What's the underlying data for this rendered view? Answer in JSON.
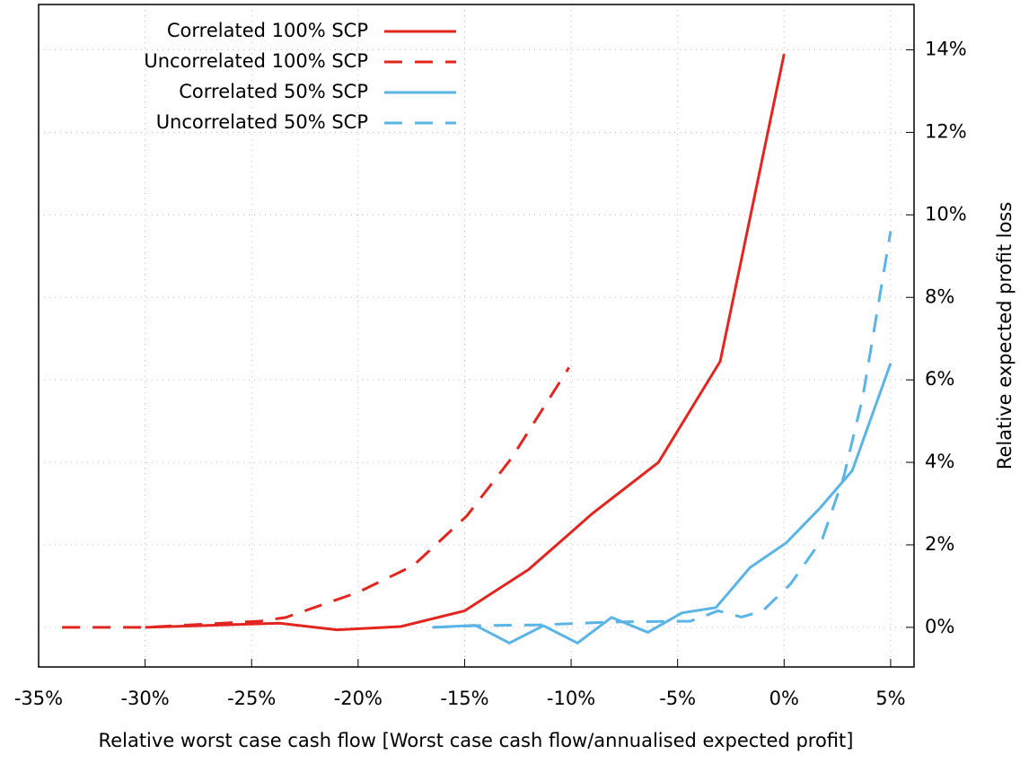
{
  "chart_data": {
    "type": "line",
    "xlabel": "Relative worst case cash flow [Worst case cash flow/annualised expected profit]",
    "ylabel": "Relative expected profit loss",
    "xlim": [
      -35,
      6.1
    ],
    "ylim": [
      -0.96,
      15.1
    ],
    "xticks": [
      {
        "value": -35,
        "label": "-35%"
      },
      {
        "value": -30,
        "label": "-30%"
      },
      {
        "value": -25,
        "label": "-25%"
      },
      {
        "value": -20,
        "label": "-20%"
      },
      {
        "value": -15,
        "label": "-15%"
      },
      {
        "value": -10,
        "label": "-10%"
      },
      {
        "value": -5,
        "label": "-5%"
      },
      {
        "value": 0,
        "label": "0%"
      },
      {
        "value": 5,
        "label": "5%"
      }
    ],
    "yticks": [
      {
        "value": 0,
        "label": "0%"
      },
      {
        "value": 2,
        "label": "2%"
      },
      {
        "value": 4,
        "label": "4%"
      },
      {
        "value": 6,
        "label": "6%"
      },
      {
        "value": 8,
        "label": "8%"
      },
      {
        "value": 10,
        "label": "10%"
      },
      {
        "value": 12,
        "label": "12%"
      },
      {
        "value": 14,
        "label": "14%"
      }
    ],
    "y_axis_side": "right",
    "grid": true,
    "legend": "upper left",
    "series": [
      {
        "name": "Correlated 100% SCP",
        "color": "#e3251f",
        "linestyle": "solid",
        "x": [
          -30,
          -23.7,
          -21,
          -18,
          -15,
          -12,
          -9,
          -5.9,
          -3,
          0
        ],
        "values": [
          0,
          0.1,
          -0.06,
          0.02,
          0.4,
          1.4,
          2.76,
          4.0,
          6.45,
          13.9
        ]
      },
      {
        "name": "Uncorrelated 100% SCP",
        "color": "#e3251f",
        "linestyle": "dashed",
        "x": [
          -33.9,
          -30,
          -24.6,
          -23.4,
          -20,
          -17.4,
          -14.9,
          -12.8,
          -10.1
        ],
        "values": [
          0,
          0,
          0.15,
          0.24,
          0.85,
          1.5,
          2.7,
          4.1,
          6.3
        ]
      },
      {
        "name": "Correlated 50% SCP",
        "color": "#5ab4e5",
        "linestyle": "solid",
        "x": [
          -16.5,
          -14.5,
          -12.9,
          -11.3,
          -9.7,
          -8.1,
          -6.4,
          -4.8,
          -3.2,
          -1.6,
          0.1,
          1.7,
          3.2,
          5
        ],
        "values": [
          0,
          0.05,
          -0.38,
          0.04,
          -0.38,
          0.24,
          -0.12,
          0.35,
          0.48,
          1.45,
          2.05,
          2.9,
          3.8,
          6.4
        ]
      },
      {
        "name": "Uncorrelated 50% SCP",
        "color": "#5ab4e5",
        "linestyle": "dashed",
        "x": [
          -16.5,
          -14.5,
          -11.5,
          -8.1,
          -4.4,
          -3.1,
          -2,
          -1,
          0.3,
          1.8,
          2.8,
          3.7,
          5
        ],
        "values": [
          0,
          0.04,
          0.06,
          0.13,
          0.15,
          0.4,
          0.25,
          0.4,
          1.05,
          2.15,
          3.65,
          5.6,
          9.6
        ]
      }
    ]
  }
}
